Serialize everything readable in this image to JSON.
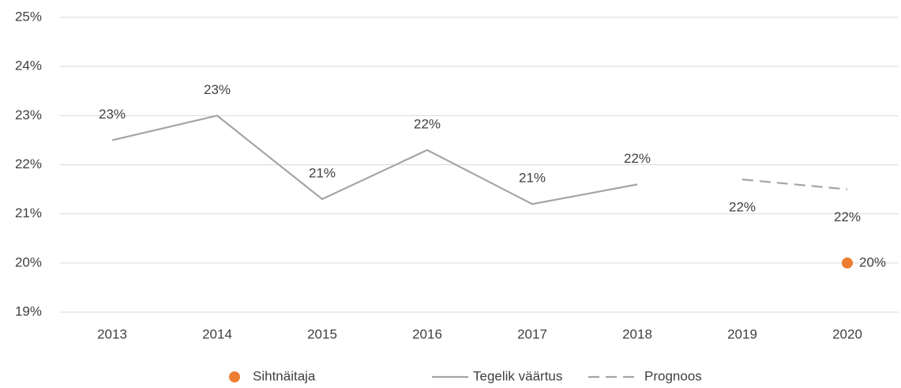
{
  "chart_data": {
    "type": "line",
    "categories": [
      "2013",
      "2014",
      "2015",
      "2016",
      "2017",
      "2018",
      "2019",
      "2020"
    ],
    "series": [
      {
        "name": "Sihtnäitaja",
        "color": "#ed7d31",
        "style": "marker",
        "values": [
          null,
          null,
          null,
          null,
          null,
          null,
          null,
          20
        ],
        "value_labels": [
          null,
          null,
          null,
          null,
          null,
          null,
          null,
          "20%"
        ]
      },
      {
        "name": "Tegelik väärtus",
        "color": "#a5a5a5",
        "style": "solid",
        "values": [
          22.5,
          23.0,
          21.3,
          22.3,
          21.2,
          21.6,
          null,
          null
        ],
        "value_labels": [
          "23%",
          "23%",
          "21%",
          "22%",
          "21%",
          "22%",
          null,
          null
        ]
      },
      {
        "name": "Prognoos",
        "color": "#a5a5a5",
        "style": "dashed",
        "values": [
          null,
          null,
          null,
          null,
          null,
          null,
          21.7,
          21.5
        ],
        "value_labels": [
          null,
          null,
          null,
          null,
          null,
          null,
          "22%",
          "22%"
        ]
      }
    ],
    "ylim": [
      19,
      25
    ],
    "yticks": [
      {
        "value": 19,
        "label": "19%"
      },
      {
        "value": 20,
        "label": "20%"
      },
      {
        "value": 21,
        "label": "21%"
      },
      {
        "value": 22,
        "label": "22%"
      },
      {
        "value": 23,
        "label": "23%"
      },
      {
        "value": 24,
        "label": "24%"
      },
      {
        "value": 25,
        "label": "25%"
      }
    ],
    "grid": true,
    "legend": "bottom"
  }
}
